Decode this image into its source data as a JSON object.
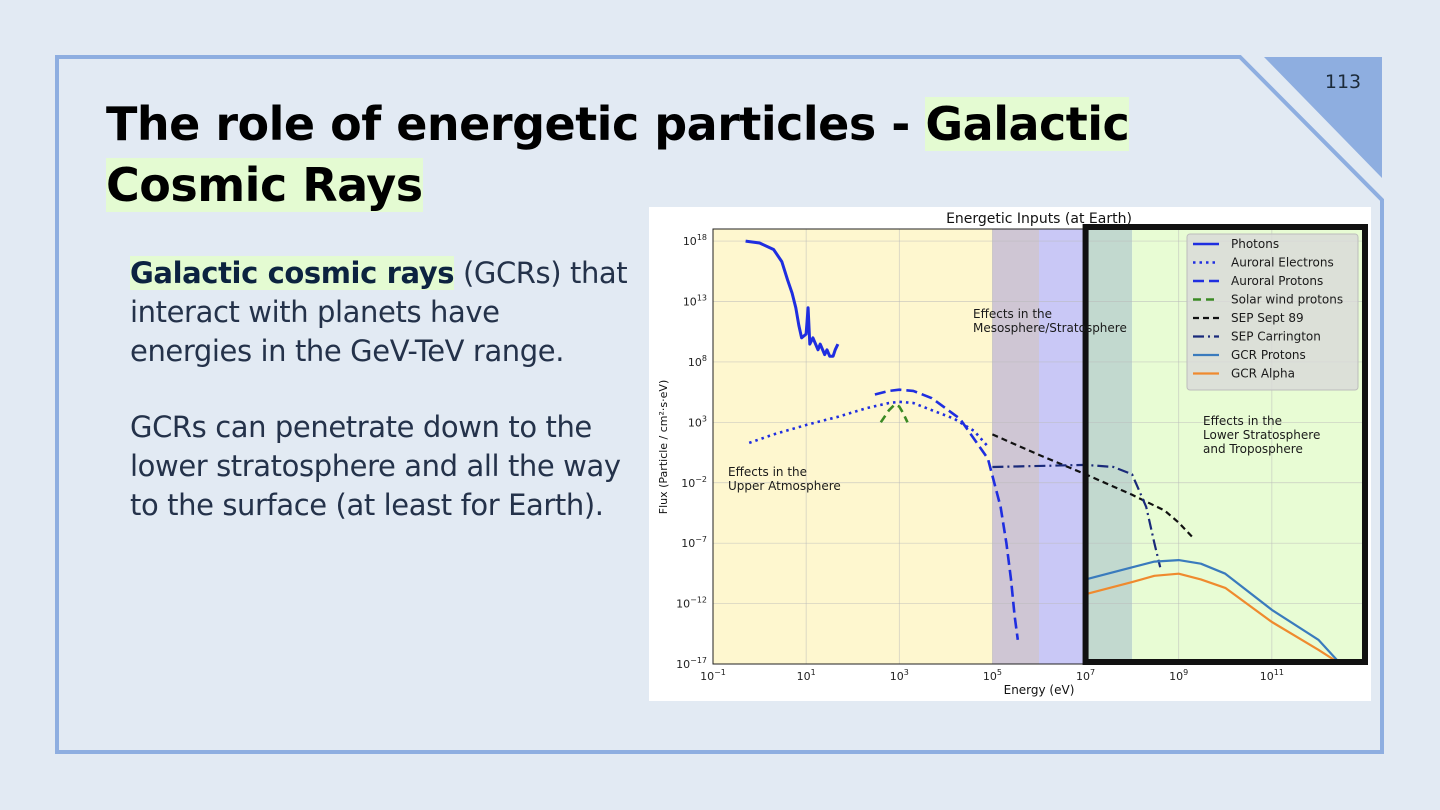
{
  "slide": {
    "number": "113",
    "title_plain": "The role of energetic particles - ",
    "title_highlight_1": "Galactic",
    "title_highlight_2": "Cosmic Rays",
    "para1_bold": "Galactic cosmic rays",
    "para1_rest": " (GCRs) that interact with planets have energies in the GeV-TeV range.",
    "para2": "GCRs can penetrate down to the lower stratosphere and all the way to the surface (at least for Earth).",
    "colors": {
      "background": "#e2eaf3",
      "frame": "#8eaee0",
      "highlight": "#e4fbd2"
    }
  },
  "chart_data": {
    "type": "line",
    "title": "Energetic Inputs (at Earth)",
    "xlabel": "Energy (eV)",
    "ylabel": "Flux (Particle / cm²·s·eV)",
    "x_scale": "log",
    "y_scale": "log",
    "xlim": [
      0.1,
      10000000000000.0
    ],
    "ylim": [
      1e-17,
      1e+19
    ],
    "x_ticks": [
      {
        "value": 0.1,
        "base": "10",
        "exp": "−1"
      },
      {
        "value": 10,
        "base": "10",
        "exp": "1"
      },
      {
        "value": 1000,
        "base": "10",
        "exp": "3"
      },
      {
        "value": 100000,
        "base": "10",
        "exp": "5"
      },
      {
        "value": 10000000,
        "base": "10",
        "exp": "7"
      },
      {
        "value": 1000000000,
        "base": "10",
        "exp": "9"
      },
      {
        "value": 100000000000,
        "base": "10",
        "exp": "11"
      }
    ],
    "y_ticks": [
      {
        "value": 1e+18,
        "base": "10",
        "exp": "18"
      },
      {
        "value": 10000000000000.0,
        "base": "10",
        "exp": "13"
      },
      {
        "value": 100000000.0,
        "base": "10",
        "exp": "8"
      },
      {
        "value": 1000.0,
        "base": "10",
        "exp": "3"
      },
      {
        "value": 0.01,
        "base": "10",
        "exp": "−2"
      },
      {
        "value": 1e-07,
        "base": "10",
        "exp": "−7"
      },
      {
        "value": 1e-12,
        "base": "10",
        "exp": "−12"
      },
      {
        "value": 1e-17,
        "base": "10",
        "exp": "−17"
      }
    ],
    "regions": [
      {
        "x": [
          0.1,
          100000
        ],
        "color": "#fef7cf",
        "label": [
          "Effects in the",
          "Upper Atmosphere"
        ]
      },
      {
        "x": [
          100000,
          1000000
        ],
        "color": "#cfc6d4",
        "label": [
          "Effects in the",
          "Mesosphere/Stratosphere"
        ]
      },
      {
        "x": [
          1000000,
          10000000
        ],
        "color": "#c9c8f6",
        "label": null
      },
      {
        "x": [
          10000000,
          100000000
        ],
        "color": "#c2d9cf",
        "label": null
      },
      {
        "x": [
          100000000,
          10000000000000.0
        ],
        "color": "#e8fcd4",
        "label": [
          "Effects in the",
          "Lower Stratosphere",
          "and Troposphere"
        ]
      }
    ],
    "highlight_box": {
      "x": [
        10000000,
        10000000000000.0
      ],
      "y": [
        1e-17,
        1e+19
      ]
    },
    "series": [
      {
        "name": "Photons",
        "color": "#1f2ee0",
        "dash": "",
        "width": 3,
        "points": [
          [
            0.5,
            1e+18
          ],
          [
            1,
            7e+17
          ],
          [
            2,
            2e+17
          ],
          [
            3,
            2e+16
          ],
          [
            4,
            600000000000000.0
          ],
          [
            5,
            50000000000000.0
          ],
          [
            6,
            3000000000000.0
          ],
          [
            7,
            100000000000.0
          ],
          [
            8,
            10000000000.0
          ],
          [
            10,
            20000000000.0
          ],
          [
            11,
            3000000000000.0
          ],
          [
            12,
            3000000000.0
          ],
          [
            14,
            10000000000.0
          ],
          [
            16,
            3000000000.0
          ],
          [
            18,
            1000000000.0
          ],
          [
            20,
            3000000000.0
          ],
          [
            25,
            400000000.0
          ],
          [
            28,
            1000000000.0
          ],
          [
            32,
            300000000.0
          ],
          [
            38,
            300000000.0
          ],
          [
            42,
            1000000000.0
          ],
          [
            48,
            3000000000.0
          ]
        ]
      },
      {
        "name": "Auroral Electrons",
        "color": "#1f2ee0",
        "dash": "2.5 4",
        "width": 2.6,
        "points": [
          [
            0.6,
            20.0
          ],
          [
            2,
            100.0
          ],
          [
            10,
            600.0
          ],
          [
            50,
            3000.0
          ],
          [
            200,
            15000.0
          ],
          [
            600,
            40000.0
          ],
          [
            1000,
            50000.0
          ],
          [
            2000,
            40000.0
          ],
          [
            5000,
            10000.0
          ],
          [
            15000,
            2000.0
          ],
          [
            40000,
            200.0
          ],
          [
            80000,
            10.0
          ]
        ]
      },
      {
        "name": "Auroral Protons",
        "color": "#1f2ee0",
        "dash": "11 5",
        "width": 2.6,
        "points": [
          [
            300,
            200000.0
          ],
          [
            600,
            400000.0
          ],
          [
            1000,
            500000.0
          ],
          [
            2000,
            400000.0
          ],
          [
            5000,
            100000.0
          ],
          [
            20000,
            2000.0
          ],
          [
            80000,
            1
          ],
          [
            150000,
            0.0001
          ],
          [
            200000,
            1e-07
          ],
          [
            250000,
            1e-10
          ],
          [
            300000,
            1e-13
          ],
          [
            350000,
            1e-15
          ]
        ]
      },
      {
        "name": "Solar wind  protons",
        "color": "#3b8a24",
        "dash": "8 5",
        "width": 2.6,
        "points": [
          [
            400,
            1000.0
          ],
          [
            600,
            10000.0
          ],
          [
            800,
            30000.0
          ],
          [
            1000,
            20000.0
          ],
          [
            1200,
            6000.0
          ],
          [
            1500,
            1000.0
          ]
        ]
      },
      {
        "name": "SEP Sept 89",
        "color": "#111111",
        "dash": "6 4",
        "width": 2.2,
        "points": [
          [
            100000,
            100.0
          ],
          [
            1000000,
            2.0
          ],
          [
            10000000,
            0.05
          ],
          [
            100000000,
            0.001
          ],
          [
            500000000,
            5e-05
          ],
          [
            1000000000,
            5e-06
          ],
          [
            2000000000,
            3e-07
          ]
        ]
      },
      {
        "name": "SEP Carrington",
        "color": "#1a2a7a",
        "dash": "11 4 2 4",
        "width": 2.2,
        "points": [
          [
            100000,
            0.2
          ],
          [
            10000000,
            0.3
          ],
          [
            40000000,
            0.2
          ],
          [
            100000000,
            0.05
          ],
          [
            200000000,
            0.0001
          ],
          [
            300000000,
            1e-07
          ],
          [
            400000000,
            1e-09
          ]
        ]
      },
      {
        "name": "GCR Protons",
        "color": "#3a7bbd",
        "dash": "",
        "width": 2.2,
        "points": [
          [
            10000000,
            1e-10
          ],
          [
            100000000,
            1e-09
          ],
          [
            300000000,
            3e-09
          ],
          [
            1000000000,
            4e-09
          ],
          [
            3000000000,
            2e-09
          ],
          [
            10000000000,
            3e-10
          ],
          [
            100000000000,
            3e-13
          ],
          [
            1000000000000,
            1e-15
          ],
          [
            3000000000000,
            1e-17
          ]
        ]
      },
      {
        "name": "GCR Alpha",
        "color": "#ef8a2e",
        "dash": "",
        "width": 2.2,
        "points": [
          [
            10000000,
            6e-12
          ],
          [
            100000000,
            6e-11
          ],
          [
            300000000,
            2e-10
          ],
          [
            1000000000,
            3e-10
          ],
          [
            3000000000,
            1e-10
          ],
          [
            10000000000,
            2e-11
          ],
          [
            100000000000,
            3e-14
          ],
          [
            1000000000000,
            1.5e-16
          ],
          [
            3000000000000,
            1e-17
          ]
        ]
      }
    ],
    "legend": {
      "position": "top-right"
    }
  }
}
